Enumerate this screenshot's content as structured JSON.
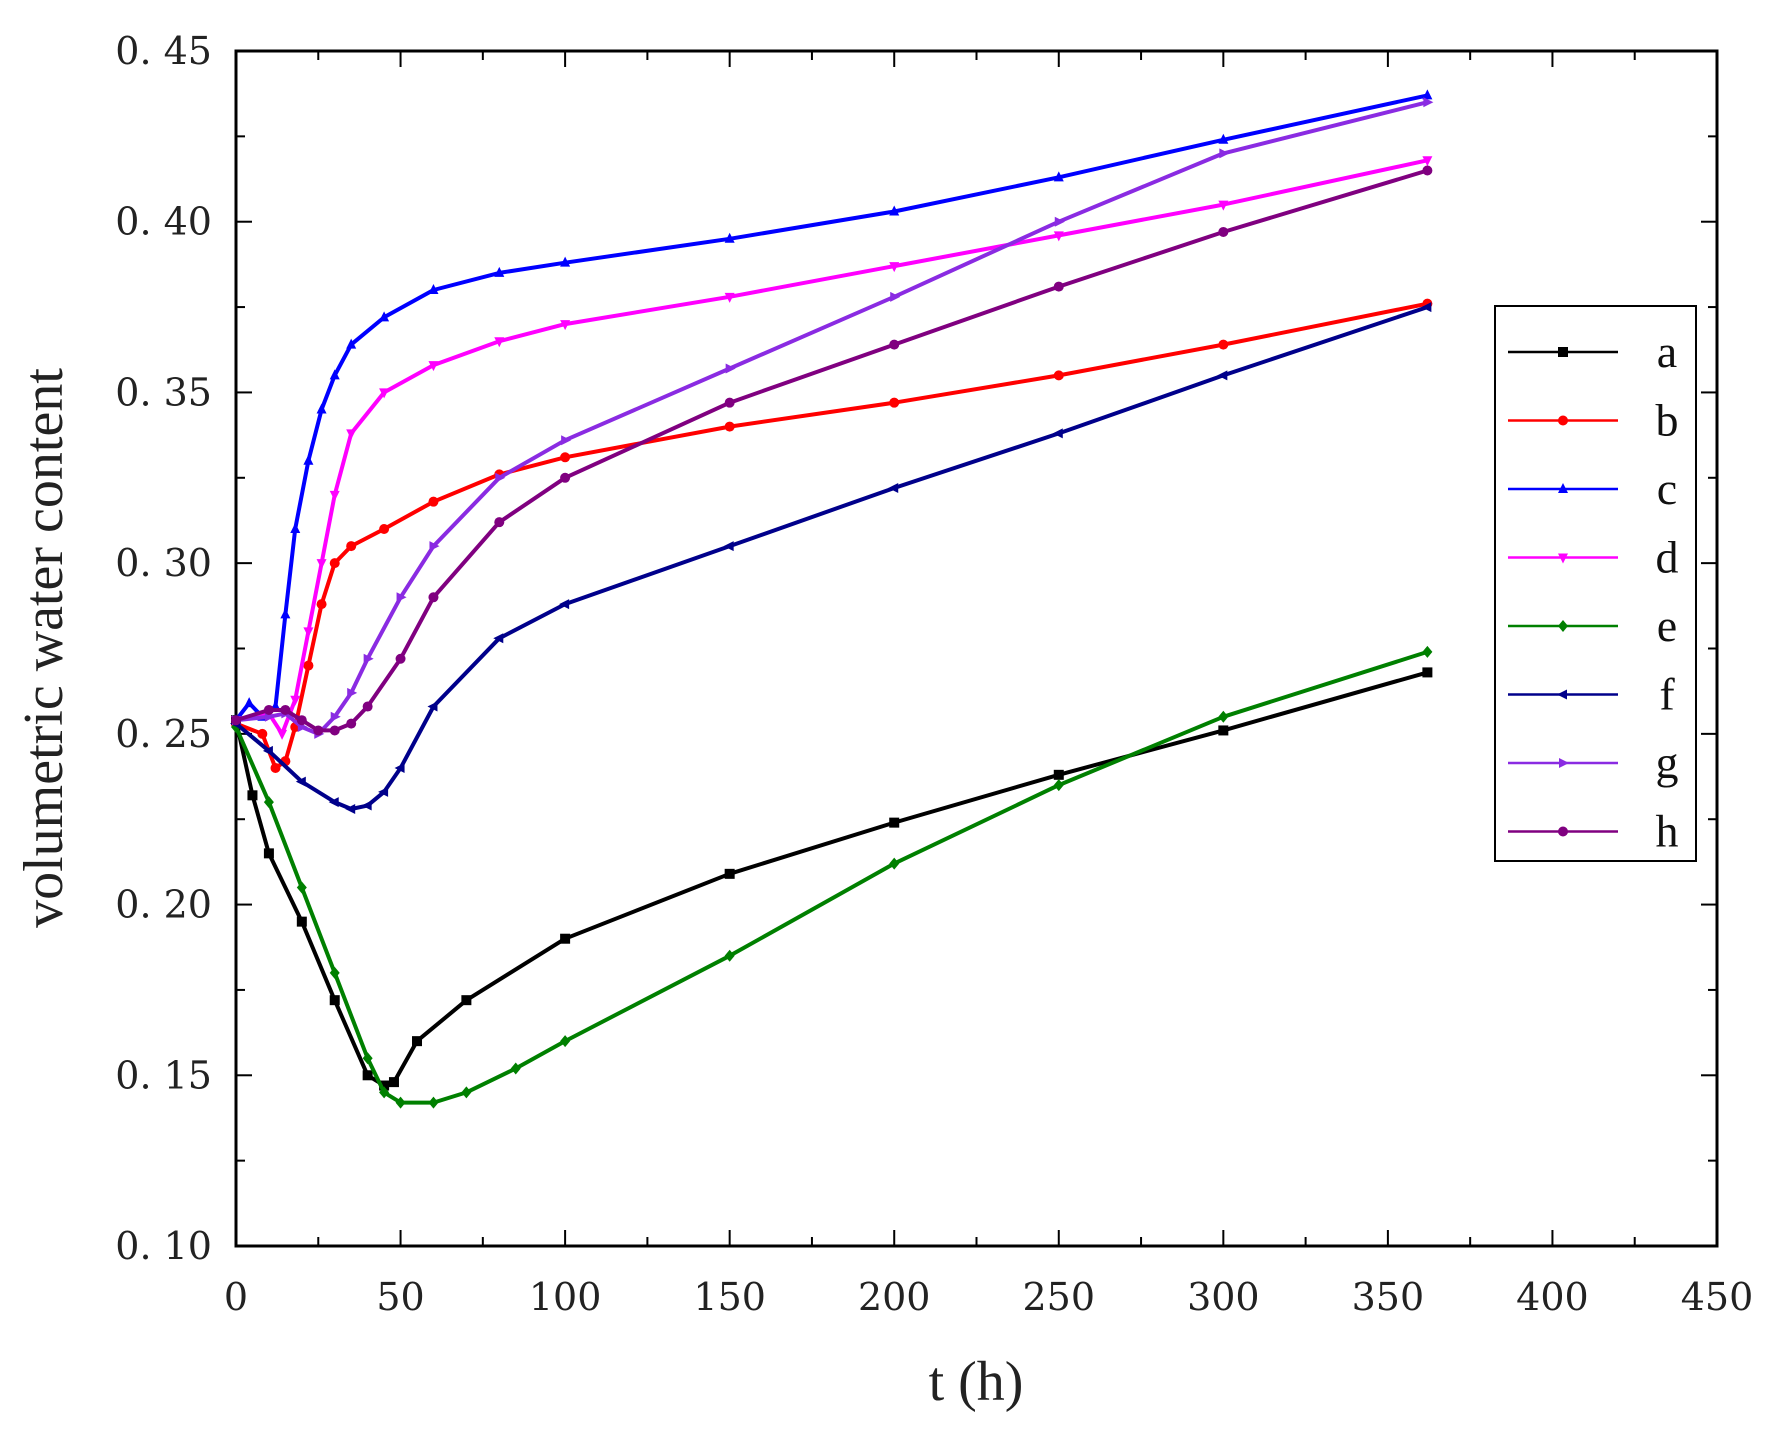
{
  "chart_data": {
    "type": "line",
    "title": "",
    "xlabel": "t (h)",
    "ylabel": "volumetric water content",
    "xlim": [
      0,
      450
    ],
    "ylim": [
      0.1,
      0.45
    ],
    "xticks": [
      "0",
      "50",
      "100",
      "150",
      "200",
      "250",
      "300",
      "350",
      "400",
      "450"
    ],
    "yticks": [
      "0.10",
      "0.15",
      "0.20",
      "0.25",
      "0.30",
      "0.35",
      "0.40",
      "0.45"
    ],
    "legend_position": "right",
    "grid": false,
    "series": [
      {
        "name": "a",
        "color": "#000000",
        "marker": "square",
        "x": [
          0,
          5,
          10,
          20,
          30,
          40,
          45,
          48,
          55,
          70,
          100,
          150,
          200,
          250,
          300,
          362
        ],
        "y": [
          0.254,
          0.232,
          0.215,
          0.195,
          0.172,
          0.15,
          0.147,
          0.148,
          0.16,
          0.172,
          0.19,
          0.209,
          0.224,
          0.238,
          0.251,
          0.268
        ]
      },
      {
        "name": "b",
        "color": "#ff0000",
        "marker": "circle",
        "x": [
          0,
          8,
          12,
          15,
          18,
          22,
          26,
          30,
          35,
          45,
          60,
          80,
          100,
          150,
          200,
          250,
          300,
          362
        ],
        "y": [
          0.253,
          0.25,
          0.24,
          0.242,
          0.252,
          0.27,
          0.288,
          0.3,
          0.305,
          0.31,
          0.318,
          0.326,
          0.331,
          0.34,
          0.347,
          0.355,
          0.364,
          0.376
        ]
      },
      {
        "name": "c",
        "color": "#0000ff",
        "marker": "triangle-up",
        "x": [
          0,
          4,
          8,
          12,
          15,
          18,
          22,
          26,
          30,
          35,
          45,
          60,
          80,
          100,
          150,
          200,
          250,
          300,
          362
        ],
        "y": [
          0.254,
          0.259,
          0.255,
          0.258,
          0.285,
          0.31,
          0.33,
          0.345,
          0.355,
          0.364,
          0.372,
          0.38,
          0.385,
          0.388,
          0.395,
          0.403,
          0.413,
          0.424,
          0.437
        ]
      },
      {
        "name": "d",
        "color": "#ff00ff",
        "marker": "triangle-down",
        "x": [
          0,
          10,
          14,
          18,
          22,
          26,
          30,
          35,
          45,
          60,
          80,
          100,
          150,
          200,
          250,
          300,
          362
        ],
        "y": [
          0.254,
          0.256,
          0.25,
          0.26,
          0.28,
          0.3,
          0.32,
          0.338,
          0.35,
          0.358,
          0.365,
          0.37,
          0.378,
          0.387,
          0.396,
          0.405,
          0.418
        ]
      },
      {
        "name": "e",
        "color": "#008000",
        "marker": "diamond",
        "x": [
          0,
          10,
          20,
          30,
          40,
          45,
          50,
          60,
          70,
          85,
          100,
          150,
          200,
          250,
          300,
          362
        ],
        "y": [
          0.252,
          0.23,
          0.205,
          0.18,
          0.155,
          0.145,
          0.142,
          0.142,
          0.145,
          0.152,
          0.16,
          0.185,
          0.212,
          0.235,
          0.255,
          0.274
        ]
      },
      {
        "name": "f",
        "color": "#00008b",
        "marker": "triangle-left",
        "x": [
          0,
          10,
          20,
          30,
          35,
          40,
          45,
          50,
          60,
          80,
          100,
          150,
          200,
          250,
          300,
          362
        ],
        "y": [
          0.253,
          0.245,
          0.236,
          0.23,
          0.228,
          0.229,
          0.233,
          0.24,
          0.258,
          0.278,
          0.288,
          0.305,
          0.322,
          0.338,
          0.355,
          0.375
        ]
      },
      {
        "name": "g",
        "color": "#8a2be2",
        "marker": "triangle-right",
        "x": [
          0,
          10,
          15,
          20,
          25,
          30,
          35,
          40,
          50,
          60,
          80,
          100,
          150,
          200,
          250,
          300,
          362
        ],
        "y": [
          0.254,
          0.255,
          0.256,
          0.252,
          0.25,
          0.255,
          0.262,
          0.272,
          0.29,
          0.305,
          0.325,
          0.336,
          0.357,
          0.378,
          0.4,
          0.42,
          0.435
        ]
      },
      {
        "name": "h",
        "color": "#800080",
        "marker": "circle",
        "x": [
          0,
          10,
          15,
          20,
          25,
          30,
          35,
          40,
          50,
          60,
          80,
          100,
          150,
          200,
          250,
          300,
          362
        ],
        "y": [
          0.254,
          0.257,
          0.257,
          0.254,
          0.251,
          0.251,
          0.253,
          0.258,
          0.272,
          0.29,
          0.312,
          0.325,
          0.347,
          0.364,
          0.381,
          0.397,
          0.415
        ]
      }
    ]
  }
}
